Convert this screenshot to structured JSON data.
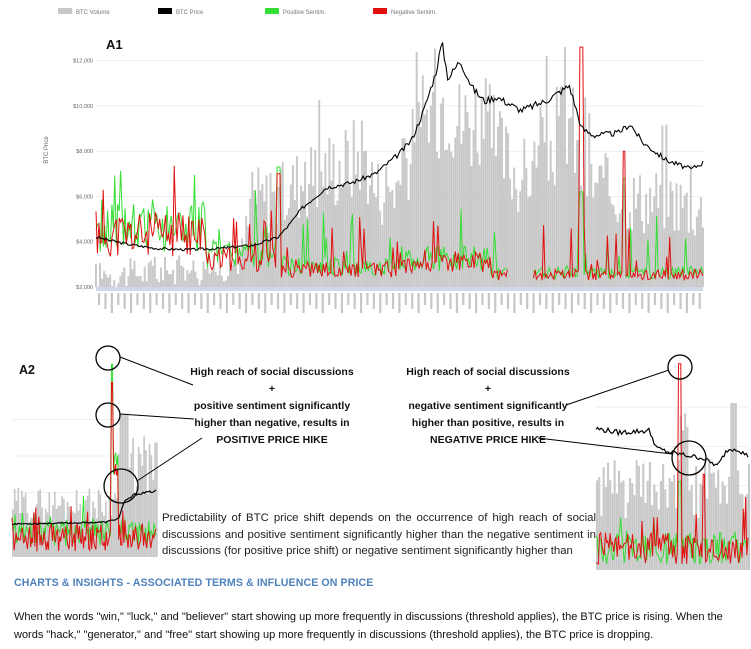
{
  "legend": [
    {
      "name": "BTC Volume",
      "color": "#c8c8c8"
    },
    {
      "name": "BTC Price",
      "color": "#000000"
    },
    {
      "name": "Positive Sentim.",
      "color": "#33dd33"
    },
    {
      "name": "Negative Sentim.",
      "color": "#e01010"
    }
  ],
  "chart_data": [
    {
      "type": "bar",
      "label": "A1",
      "ylabel": "BTC Price",
      "ytick_labels": [
        "$2,000",
        "$4,000",
        "$6,000",
        "$8,000",
        "$10,000",
        "$12,000"
      ],
      "ylim": [
        2000,
        13000
      ],
      "grid": true,
      "legend_position": "top",
      "price_keypoints": [
        [
          0,
          4200
        ],
        [
          0.05,
          3900
        ],
        [
          0.1,
          3700
        ],
        [
          0.15,
          3650
        ],
        [
          0.2,
          3700
        ],
        [
          0.26,
          3850
        ],
        [
          0.3,
          4200
        ],
        [
          0.32,
          4800
        ],
        [
          0.34,
          5500
        ],
        [
          0.38,
          6400
        ],
        [
          0.42,
          6600
        ],
        [
          0.46,
          7000
        ],
        [
          0.5,
          7900
        ],
        [
          0.52,
          8500
        ],
        [
          0.54,
          9800
        ],
        [
          0.56,
          11500
        ],
        [
          0.57,
          12800
        ],
        [
          0.58,
          11200
        ],
        [
          0.6,
          12000
        ],
        [
          0.62,
          10800
        ],
        [
          0.64,
          10200
        ],
        [
          0.66,
          10400
        ],
        [
          0.7,
          9800
        ],
        [
          0.74,
          10200
        ],
        [
          0.78,
          10900
        ],
        [
          0.8,
          9000
        ],
        [
          0.82,
          8700
        ],
        [
          0.86,
          8800
        ],
        [
          0.88,
          9200
        ],
        [
          0.9,
          8400
        ],
        [
          0.92,
          8000
        ],
        [
          0.94,
          7600
        ],
        [
          0.96,
          7400
        ],
        [
          0.98,
          7200
        ],
        [
          1.0,
          7500
        ]
      ],
      "volume_keypoints": [
        [
          0,
          2600
        ],
        [
          0.2,
          2900
        ],
        [
          0.24,
          3500
        ],
        [
          0.26,
          6200
        ],
        [
          0.3,
          6000
        ],
        [
          0.33,
          6800
        ],
        [
          0.38,
          7500
        ],
        [
          0.42,
          7800
        ],
        [
          0.44,
          8500
        ],
        [
          0.46,
          6500
        ],
        [
          0.5,
          6800
        ],
        [
          0.53,
          9000
        ],
        [
          0.56,
          10500
        ],
        [
          0.58,
          11000
        ],
        [
          0.6,
          9500
        ],
        [
          0.63,
          10000
        ],
        [
          0.66,
          8500
        ],
        [
          0.7,
          7000
        ],
        [
          0.74,
          8000
        ],
        [
          0.78,
          10000
        ],
        [
          0.8,
          7200
        ],
        [
          0.84,
          6500
        ],
        [
          0.9,
          6000
        ],
        [
          0.94,
          6200
        ],
        [
          1.0,
          5500
        ]
      ],
      "positive_spikes": [
        [
          0.3,
          7300
        ],
        [
          0.8,
          6200
        ],
        [
          0.87,
          6800
        ]
      ],
      "negative_spikes": [
        [
          0.3,
          7000
        ],
        [
          0.8,
          12600
        ],
        [
          0.87,
          8000
        ]
      ]
    },
    {
      "type": "line",
      "label": "A2",
      "description_shown": "zoom: positive price hike",
      "price_keypoints": [
        [
          0,
          3800
        ],
        [
          0.4,
          3850
        ],
        [
          0.65,
          3900
        ],
        [
          0.74,
          4100
        ],
        [
          0.78,
          5000
        ],
        [
          0.85,
          5400
        ],
        [
          1.0,
          5600
        ]
      ],
      "positive_spike": [
        0.7,
        12500
      ]
    },
    {
      "type": "line",
      "label": "",
      "price_keypoints": [
        [
          0,
          9200
        ],
        [
          0.15,
          9000
        ],
        [
          0.35,
          9100
        ],
        [
          0.4,
          8200
        ],
        [
          0.48,
          8000
        ],
        [
          0.55,
          7900
        ],
        [
          0.7,
          7700
        ],
        [
          0.8,
          7300
        ],
        [
          0.86,
          8100
        ],
        [
          0.92,
          8200
        ],
        [
          1.0,
          7800
        ]
      ],
      "negative_spike": [
        0.55,
        12500
      ]
    }
  ],
  "annotations": {
    "right": [
      "High reach of social discussions",
      "+",
      "negative sentiment significantly",
      "higher than positive, results in",
      "NEGATIVE PRICE HIKE"
    ],
    "left": [
      "High reach of social discussions",
      "+",
      "positive sentiment significantly",
      "higher than negative, results in",
      "POSITIVE PRICE HIKE"
    ]
  },
  "predict_text": "Predictability of BTC price shift depends on the occurrence of high reach of social discussions and positive sentiment significantly higher than the negative sentiment in discussions (for positive price shift) or negative sentiment significantly higher than",
  "insights": {
    "heading": "CHARTS & INSIGHTS - ASSOCIATED TERMS & INFLUENCE ON PRICE",
    "body": "When the words \"win,\" \"luck,\" and \"believer\" start showing up more frequently in discussions (threshold applies), the BTC price is rising. When the words \"hack,\" \"generator,\" and \"free\" start showing up more frequently in discussions (threshold applies), the BTC price is dropping."
  }
}
